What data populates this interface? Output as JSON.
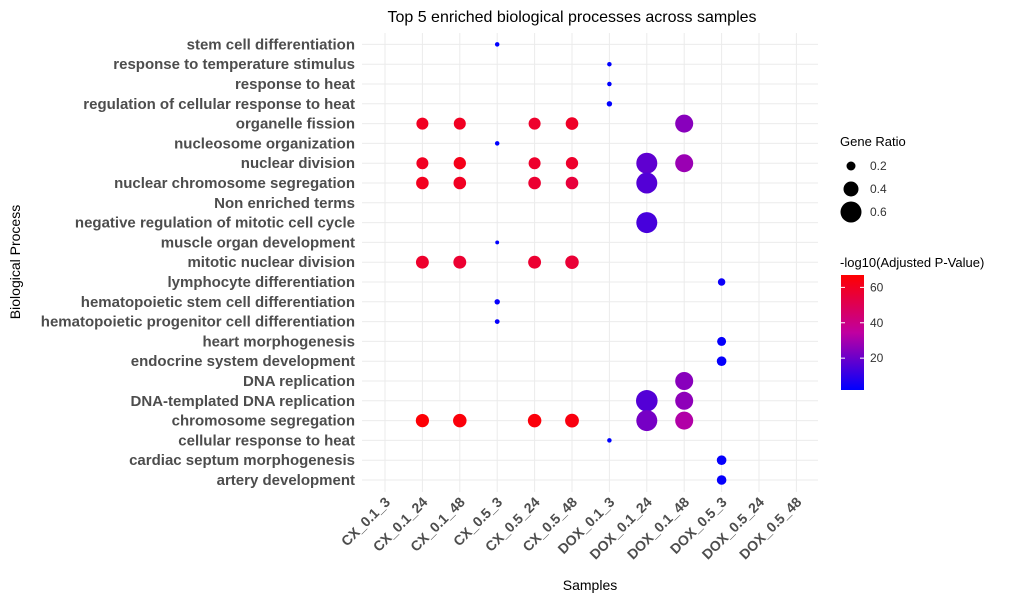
{
  "chart_data": {
    "type": "scatter",
    "title": "Top 5 enriched biological processes across samples",
    "xlabel": "Samples",
    "ylabel": "Biological Process",
    "x_categories": [
      "CX_0.1_3",
      "CX_0.1_24",
      "CX_0.1_48",
      "CX_0.5_3",
      "CX_0.5_24",
      "CX_0.5_48",
      "DOX_0.1_3",
      "DOX_0.1_24",
      "DOX_0.1_48",
      "DOX_0.5_3",
      "DOX_0.5_24",
      "DOX_0.5_48"
    ],
    "y_categories": [
      "artery development",
      "cardiac septum morphogenesis",
      "cellular response to heat",
      "chromosome segregation",
      "DNA-templated DNA replication",
      "DNA replication",
      "endocrine system development",
      "heart morphogenesis",
      "hematopoietic progenitor cell differentiation",
      "hematopoietic stem cell differentiation",
      "lymphocyte differentiation",
      "mitotic nuclear division",
      "muscle organ development",
      "negative regulation of mitotic cell cycle",
      "Non enriched terms",
      "nuclear chromosome segregation",
      "nuclear division",
      "nucleosome organization",
      "organelle fission",
      "regulation of cellular response to heat",
      "response to heat",
      "response to temperature stimulus",
      "stem cell differentiation"
    ],
    "grid": true,
    "legend_placement": "right",
    "size_legend": {
      "title": "Gene Ratio",
      "breaks": [
        0.2,
        0.4,
        0.6
      ]
    },
    "color_legend": {
      "title": "-log10(Adjusted P-Value)",
      "breaks": [
        20,
        40,
        60
      ],
      "range": [
        2,
        67
      ],
      "low_color": "#0000ff",
      "high_color": "#ff0000"
    },
    "points": [
      {
        "x": "CX_0.1_24",
        "y": "organelle fission",
        "gene_ratio": 0.3,
        "neg_log10_padj": 60
      },
      {
        "x": "CX_0.1_24",
        "y": "nuclear division",
        "gene_ratio": 0.3,
        "neg_log10_padj": 60
      },
      {
        "x": "CX_0.1_24",
        "y": "nuclear chromosome segregation",
        "gene_ratio": 0.32,
        "neg_log10_padj": 61
      },
      {
        "x": "CX_0.1_24",
        "y": "mitotic nuclear division",
        "gene_ratio": 0.33,
        "neg_log10_padj": 58
      },
      {
        "x": "CX_0.1_24",
        "y": "chromosome segregation",
        "gene_ratio": 0.34,
        "neg_log10_padj": 66
      },
      {
        "x": "CX_0.1_48",
        "y": "organelle fission",
        "gene_ratio": 0.3,
        "neg_log10_padj": 60
      },
      {
        "x": "CX_0.1_48",
        "y": "nuclear division",
        "gene_ratio": 0.31,
        "neg_log10_padj": 62
      },
      {
        "x": "CX_0.1_48",
        "y": "nuclear chromosome segregation",
        "gene_ratio": 0.32,
        "neg_log10_padj": 60
      },
      {
        "x": "CX_0.1_48",
        "y": "mitotic nuclear division",
        "gene_ratio": 0.33,
        "neg_log10_padj": 57
      },
      {
        "x": "CX_0.1_48",
        "y": "chromosome segregation",
        "gene_ratio": 0.35,
        "neg_log10_padj": 65
      },
      {
        "x": "CX_0.5_3",
        "y": "stem cell differentiation",
        "gene_ratio": 0.05,
        "neg_log10_padj": 2
      },
      {
        "x": "CX_0.5_3",
        "y": "nucleosome organization",
        "gene_ratio": 0.05,
        "neg_log10_padj": 2
      },
      {
        "x": "CX_0.5_3",
        "y": "muscle organ development",
        "gene_ratio": 0.03,
        "neg_log10_padj": 2
      },
      {
        "x": "CX_0.5_3",
        "y": "hematopoietic stem cell differentiation",
        "gene_ratio": 0.08,
        "neg_log10_padj": 3
      },
      {
        "x": "CX_0.5_3",
        "y": "hematopoietic progenitor cell differentiation",
        "gene_ratio": 0.06,
        "neg_log10_padj": 3
      },
      {
        "x": "CX_0.5_24",
        "y": "organelle fission",
        "gene_ratio": 0.3,
        "neg_log10_padj": 58
      },
      {
        "x": "CX_0.5_24",
        "y": "nuclear division",
        "gene_ratio": 0.3,
        "neg_log10_padj": 58
      },
      {
        "x": "CX_0.5_24",
        "y": "nuclear chromosome segregation",
        "gene_ratio": 0.32,
        "neg_log10_padj": 57
      },
      {
        "x": "CX_0.5_24",
        "y": "mitotic nuclear division",
        "gene_ratio": 0.33,
        "neg_log10_padj": 57
      },
      {
        "x": "CX_0.5_24",
        "y": "chromosome segregation",
        "gene_ratio": 0.35,
        "neg_log10_padj": 65
      },
      {
        "x": "CX_0.5_48",
        "y": "organelle fission",
        "gene_ratio": 0.32,
        "neg_log10_padj": 59
      },
      {
        "x": "CX_0.5_48",
        "y": "nuclear division",
        "gene_ratio": 0.31,
        "neg_log10_padj": 58
      },
      {
        "x": "CX_0.5_48",
        "y": "nuclear chromosome segregation",
        "gene_ratio": 0.32,
        "neg_log10_padj": 55
      },
      {
        "x": "CX_0.5_48",
        "y": "mitotic nuclear division",
        "gene_ratio": 0.35,
        "neg_log10_padj": 56
      },
      {
        "x": "CX_0.5_48",
        "y": "chromosome segregation",
        "gene_ratio": 0.36,
        "neg_log10_padj": 64
      },
      {
        "x": "DOX_0.1_3",
        "y": "response to temperature stimulus",
        "gene_ratio": 0.05,
        "neg_log10_padj": 2
      },
      {
        "x": "DOX_0.1_3",
        "y": "response to heat",
        "gene_ratio": 0.05,
        "neg_log10_padj": 2
      },
      {
        "x": "DOX_0.1_3",
        "y": "regulation of cellular response to heat",
        "gene_ratio": 0.08,
        "neg_log10_padj": 2
      },
      {
        "x": "DOX_0.1_3",
        "y": "cellular response to heat",
        "gene_ratio": 0.05,
        "neg_log10_padj": 2
      },
      {
        "x": "DOX_0.1_24",
        "y": "nuclear division",
        "gene_ratio": 0.6,
        "neg_log10_padj": 18
      },
      {
        "x": "DOX_0.1_24",
        "y": "nuclear chromosome segregation",
        "gene_ratio": 0.6,
        "neg_log10_padj": 16
      },
      {
        "x": "DOX_0.1_24",
        "y": "negative regulation of mitotic cell cycle",
        "gene_ratio": 0.6,
        "neg_log10_padj": 14
      },
      {
        "x": "DOX_0.1_24",
        "y": "DNA-templated DNA replication",
        "gene_ratio": 0.62,
        "neg_log10_padj": 16
      },
      {
        "x": "DOX_0.1_24",
        "y": "chromosome segregation",
        "gene_ratio": 0.6,
        "neg_log10_padj": 22
      },
      {
        "x": "DOX_0.1_48",
        "y": "organelle fission",
        "gene_ratio": 0.5,
        "neg_log10_padj": 25
      },
      {
        "x": "DOX_0.1_48",
        "y": "nuclear division",
        "gene_ratio": 0.5,
        "neg_log10_padj": 28
      },
      {
        "x": "DOX_0.1_48",
        "y": "DNA replication",
        "gene_ratio": 0.5,
        "neg_log10_padj": 25
      },
      {
        "x": "DOX_0.1_48",
        "y": "DNA-templated DNA replication",
        "gene_ratio": 0.5,
        "neg_log10_padj": 26
      },
      {
        "x": "DOX_0.1_48",
        "y": "chromosome segregation",
        "gene_ratio": 0.5,
        "neg_log10_padj": 32
      },
      {
        "x": "DOX_0.5_3",
        "y": "lymphocyte differentiation",
        "gene_ratio": 0.15,
        "neg_log10_padj": 4
      },
      {
        "x": "DOX_0.5_3",
        "y": "heart morphogenesis",
        "gene_ratio": 0.2,
        "neg_log10_padj": 3
      },
      {
        "x": "DOX_0.5_3",
        "y": "endocrine system development",
        "gene_ratio": 0.22,
        "neg_log10_padj": 3
      },
      {
        "x": "DOX_0.5_3",
        "y": "cardiac septum morphogenesis",
        "gene_ratio": 0.22,
        "neg_log10_padj": 3
      },
      {
        "x": "DOX_0.5_3",
        "y": "artery development",
        "gene_ratio": 0.22,
        "neg_log10_padj": 3
      }
    ]
  }
}
